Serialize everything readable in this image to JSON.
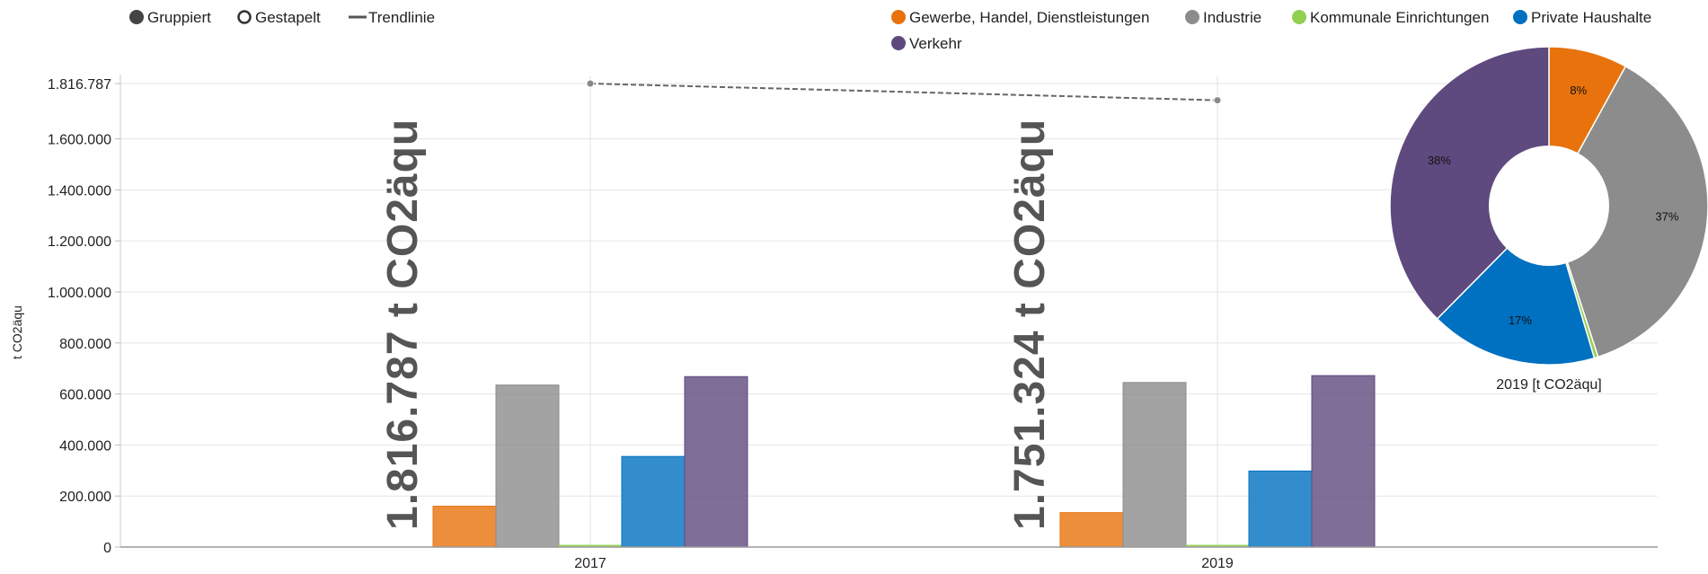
{
  "controls": [
    {
      "name": "gruppiert",
      "label": "Gruppiert",
      "marker": "dot-filled"
    },
    {
      "name": "gestapelt",
      "label": "Gestapelt",
      "marker": "dot-hollow"
    },
    {
      "name": "trendlinie",
      "label": "Trendlinie",
      "marker": "line"
    }
  ],
  "legend": [
    {
      "name": "Gewerbe, Handel, Dienstleistungen",
      "color": "#e8720c"
    },
    {
      "name": "Industrie",
      "color": "#8c8c8c"
    },
    {
      "name": "Kommunale Einrichtungen",
      "color": "#92d050"
    },
    {
      "name": "Private Haushalte",
      "color": "#0070c0"
    },
    {
      "name": "Verkehr",
      "color": "#5e4a7e"
    }
  ],
  "chart_data": [
    {
      "type": "bar",
      "ylabel": "t CO2äqu",
      "ylim": [
        0,
        1816787
      ],
      "yticks": [
        "0",
        "200.000",
        "400.000",
        "600.000",
        "800.000",
        "1.000.000",
        "1.200.000",
        "1.400.000",
        "1.600.000",
        "1.816.787"
      ],
      "ytick_values": [
        0,
        200000,
        400000,
        600000,
        800000,
        1000000,
        1200000,
        1400000,
        1600000,
        1816787
      ],
      "categories": [
        "2017",
        "2019"
      ],
      "series": [
        {
          "name": "Gewerbe, Handel, Dienstleistungen",
          "color": "#e8720c",
          "values": [
            160000,
            135000
          ]
        },
        {
          "name": "Industrie",
          "color": "#8c8c8c",
          "values": [
            635000,
            645000
          ]
        },
        {
          "name": "Kommunale Einrichtungen",
          "color": "#92d050",
          "values": [
            7000,
            7000
          ]
        },
        {
          "name": "Private Haushalte",
          "color": "#0070c0",
          "values": [
            355000,
            298000
          ]
        },
        {
          "name": "Verkehr",
          "color": "#5e4a7e",
          "values": [
            668000,
            672000
          ]
        }
      ],
      "totals": [
        {
          "category": "2017",
          "value": 1816787,
          "label": "1.816.787 t CO2äqu"
        },
        {
          "category": "2019",
          "value": 1751324,
          "label": "1.751.324 t CO2äqu"
        }
      ],
      "trendline": {
        "x": [
          "2017",
          "2019"
        ],
        "y": [
          1816787,
          1751324
        ],
        "color": "#666666"
      },
      "grid": true
    },
    {
      "type": "pie",
      "donut": true,
      "caption": "2019 [t CO2äqu]",
      "slices": [
        {
          "name": "Gewerbe, Handel, Dienstleistungen",
          "color": "#e8720c",
          "percent": 8,
          "label": "8%"
        },
        {
          "name": "Industrie",
          "color": "#8c8c8c",
          "percent": 37,
          "label": "37%"
        },
        {
          "name": "Kommunale Einrichtungen",
          "color": "#92d050",
          "percent": 0.4,
          "label": ""
        },
        {
          "name": "Private Haushalte",
          "color": "#0070c0",
          "percent": 17,
          "label": "17%"
        },
        {
          "name": "Verkehr",
          "color": "#5e4a7e",
          "percent": 37.6,
          "label": "38%"
        }
      ]
    }
  ]
}
